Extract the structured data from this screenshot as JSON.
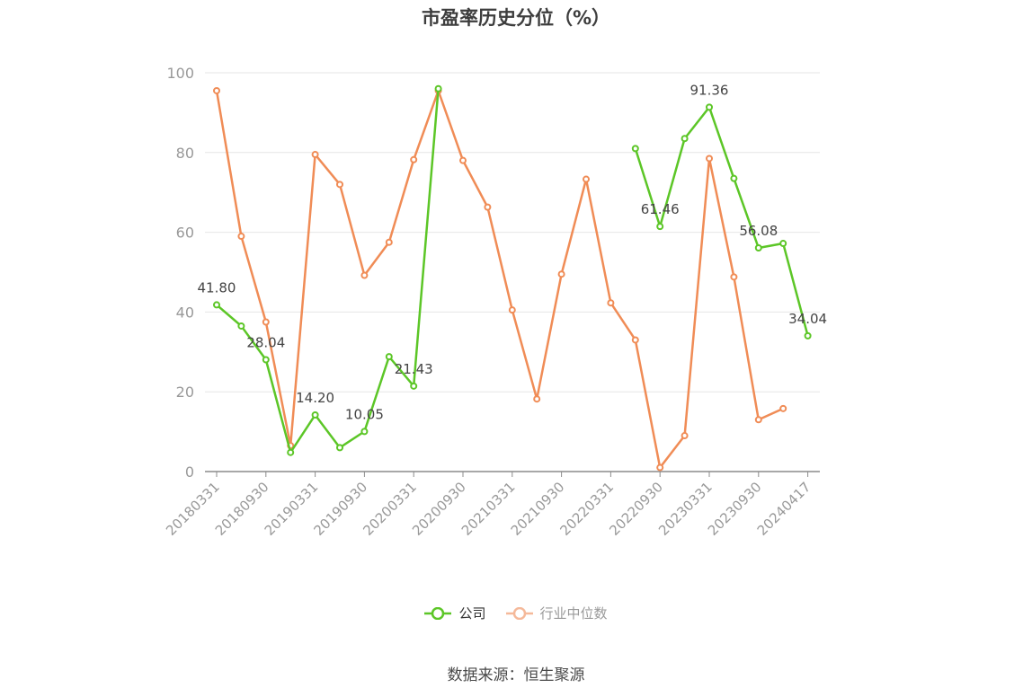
{
  "title": "市盈率历史分位（%）",
  "source": "数据来源：恒生聚源",
  "colors": {
    "company": "#5cc627",
    "industry": "#f08c56",
    "grid": "#e6e6e6",
    "axis": "#8c8c8c",
    "tick_text": "#999999",
    "label_text": "#444444"
  },
  "chart_data": {
    "type": "line",
    "title": "市盈率历史分位（%）",
    "xlabel": "",
    "ylabel": "",
    "ylim": [
      0,
      100
    ],
    "yticks": [
      0,
      20,
      40,
      60,
      80,
      100
    ],
    "grid": true,
    "legend_position": "bottom",
    "x": [
      "20180331",
      "20180630",
      "20180930",
      "20181231",
      "20190331",
      "20190630",
      "20190930",
      "20191231",
      "20200331",
      "20200630",
      "20200930",
      "20201231",
      "20210331",
      "20210630",
      "20210930",
      "20211231",
      "20220331",
      "20220630",
      "20220930",
      "20221231",
      "20230331",
      "20230630",
      "20230930",
      "20231231",
      "20240417"
    ],
    "xtick_labels": [
      "20180331",
      "20180930",
      "20190331",
      "20190930",
      "20200331",
      "20200930",
      "20210331",
      "20210930",
      "20220331",
      "20220930",
      "20230331",
      "20230930",
      "20240417"
    ],
    "series": [
      {
        "name": "公司",
        "color": "#5cc627",
        "values": [
          41.8,
          36.5,
          28.04,
          4.8,
          14.2,
          6.0,
          10.05,
          28.8,
          21.43,
          96.0,
          null,
          null,
          null,
          null,
          null,
          null,
          null,
          81.0,
          61.46,
          83.5,
          91.36,
          73.5,
          56.08,
          57.2,
          34.04
        ],
        "labels": [
          "41.80",
          null,
          "28.04",
          null,
          "14.20",
          null,
          "10.05",
          null,
          "21.43",
          null,
          null,
          null,
          null,
          null,
          null,
          null,
          null,
          null,
          "61.46",
          null,
          "91.36",
          null,
          "56.08",
          null,
          "34.04"
        ]
      },
      {
        "name": "行业中位数",
        "color": "#f08c56",
        "values": [
          95.5,
          59.0,
          37.5,
          6.5,
          79.5,
          72.0,
          49.2,
          57.5,
          78.2,
          95.5,
          78.0,
          66.3,
          40.5,
          18.2,
          49.5,
          73.3,
          42.3,
          33.0,
          1.0,
          9.0,
          78.5,
          48.8,
          13.0,
          15.8,
          null
        ],
        "labels": []
      }
    ]
  },
  "legend": [
    {
      "label": "公司",
      "color": "#5cc627"
    },
    {
      "label": "行业中位数",
      "color": "#f5b99a"
    }
  ]
}
